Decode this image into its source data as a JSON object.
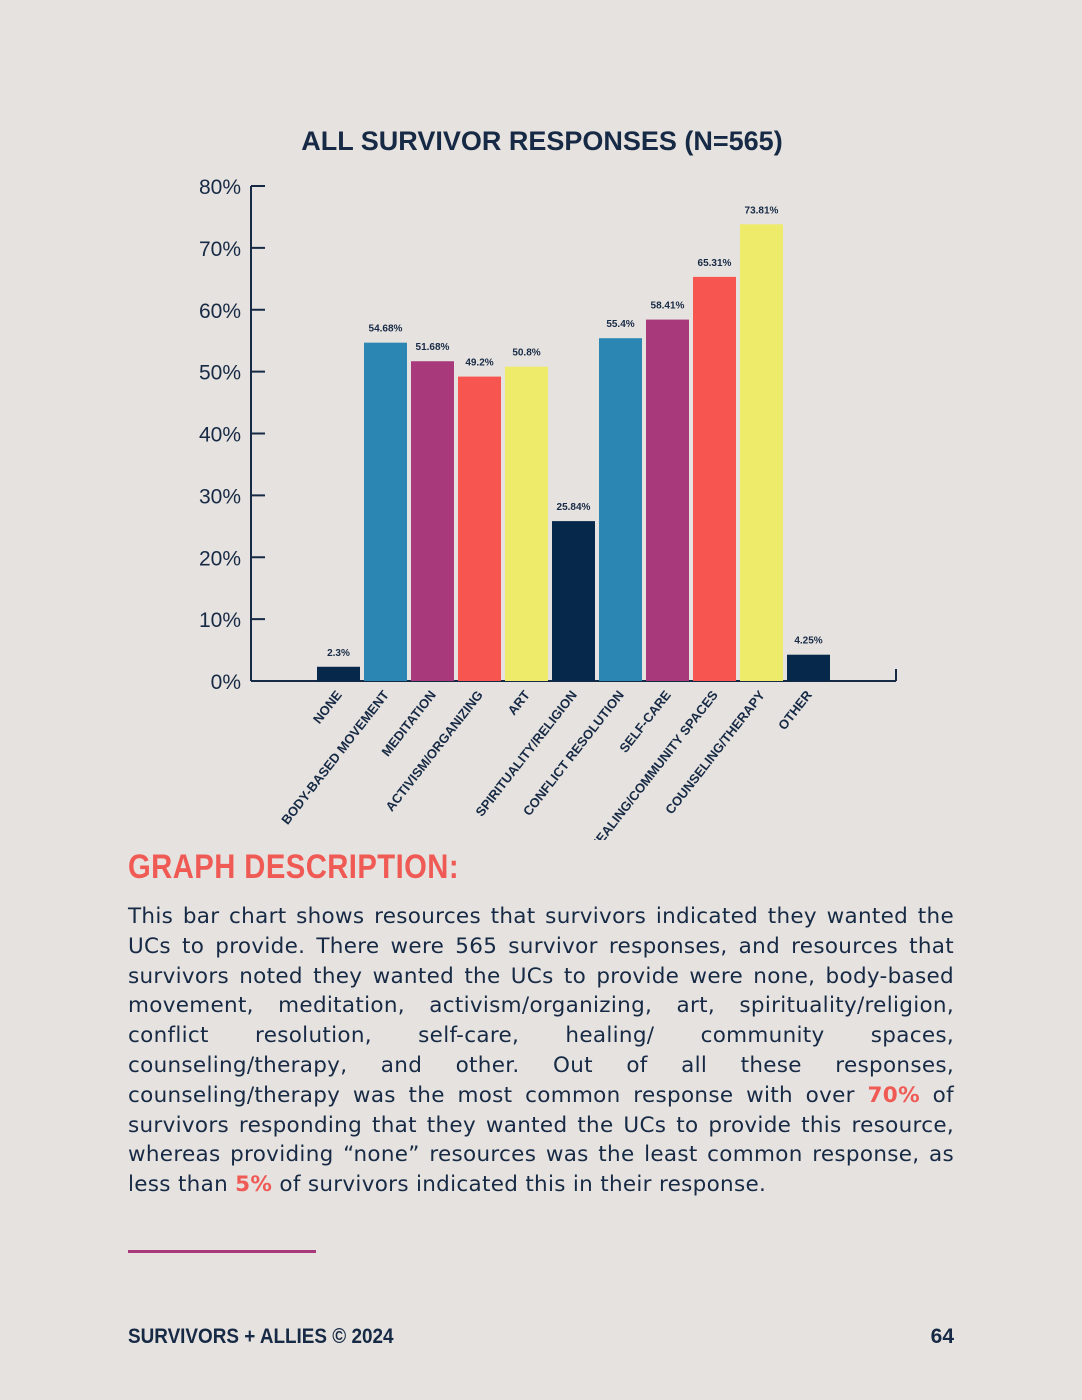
{
  "chart_data": {
    "type": "bar",
    "title": "ALL SURVIVOR RESPONSES (N=565)",
    "xlabel": "",
    "ylabel": "",
    "ylim": [
      0,
      80
    ],
    "yticks": [
      "0%",
      "10%",
      "20%",
      "30%",
      "40%",
      "50%",
      "60%",
      "70%",
      "80%"
    ],
    "categories": [
      "NONE",
      "BODY-BASED MOVEMENT",
      "MEDITATION",
      "ACTIVISM/ORGANIZING",
      "ART",
      "SPIRITUALITY/RELIGION",
      "CONFLICT RESOLUTION",
      "SELF-CARE",
      "HEALING/COMMUNITY SPACES",
      "COUNSELING/THERAPY",
      "OTHER"
    ],
    "values": [
      2.3,
      54.68,
      51.68,
      49.2,
      50.8,
      25.84,
      55.4,
      58.41,
      65.31,
      73.81,
      4.25
    ],
    "value_labels": [
      "2.3%",
      "54.68%",
      "51.68%",
      "49.2%",
      "50.8%",
      "25.84%",
      "55.4%",
      "58.41%",
      "65.31%",
      "73.81%",
      "4.25%"
    ],
    "colors": [
      "#06284a",
      "#2b86b3",
      "#a8397b",
      "#f7554f",
      "#eeeb6b",
      "#06284a",
      "#2b86b3",
      "#a8397b",
      "#f7554f",
      "#eeeb6b",
      "#06284a"
    ],
    "grid": false,
    "legend": "none"
  },
  "description": {
    "heading": "GRAPH DESCRIPTION:",
    "part1": "This bar chart shows resources that survivors indicated they wanted the UCs to provide. There were 565 survivor responses, and resources that survivors noted they wanted the UCs to provide were none, body-based movement, meditation, activism/organizing, art, spirituality/religion, conflict resolution, self-care, healing/ community spaces, counseling/therapy, and other. Out of all these responses, counseling/therapy was the most common response with over ",
    "highlight1": "70%",
    "part2": "  of survivors responding that they wanted the UCs to provide this resource, whereas providing “none” resources was the least common response, as less than ",
    "highlight2": "5%",
    "part3": "  of survivors indicated this in their response."
  },
  "footer": {
    "left": "SURVIVORS + ALLIES © 2024",
    "page": "64"
  }
}
